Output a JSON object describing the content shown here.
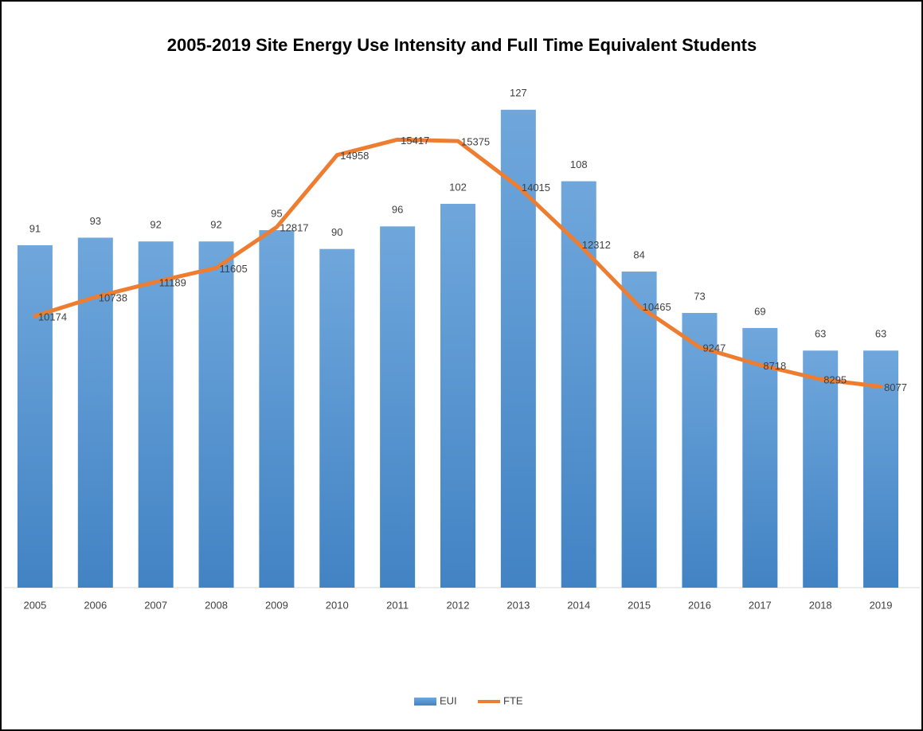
{
  "chart_data": {
    "type": "bar-line",
    "title": "2005-2019 Site Energy Use Intensity and Full Time Equivalent Students",
    "categories": [
      "2005",
      "2006",
      "2007",
      "2008",
      "2009",
      "2010",
      "2011",
      "2012",
      "2013",
      "2014",
      "2015",
      "2016",
      "2017",
      "2018",
      "2019"
    ],
    "series": [
      {
        "name": "EUI",
        "type": "bar",
        "color": "#5b9bd5",
        "values": [
          91,
          93,
          92,
          92,
          95,
          90,
          96,
          102,
          127,
          108,
          84,
          73,
          69,
          63,
          63
        ]
      },
      {
        "name": "FTE",
        "type": "line",
        "axis": "y2",
        "color": "#ed7d31",
        "values": [
          10174,
          10738,
          11189,
          11605,
          12817,
          14958,
          15417,
          15375,
          14015,
          12312,
          10465,
          9247,
          8718,
          8295,
          8077
        ]
      }
    ],
    "ylim": [
      0,
      135
    ],
    "y2lim": [
      2100,
      17200
    ],
    "legend": "bottom"
  }
}
